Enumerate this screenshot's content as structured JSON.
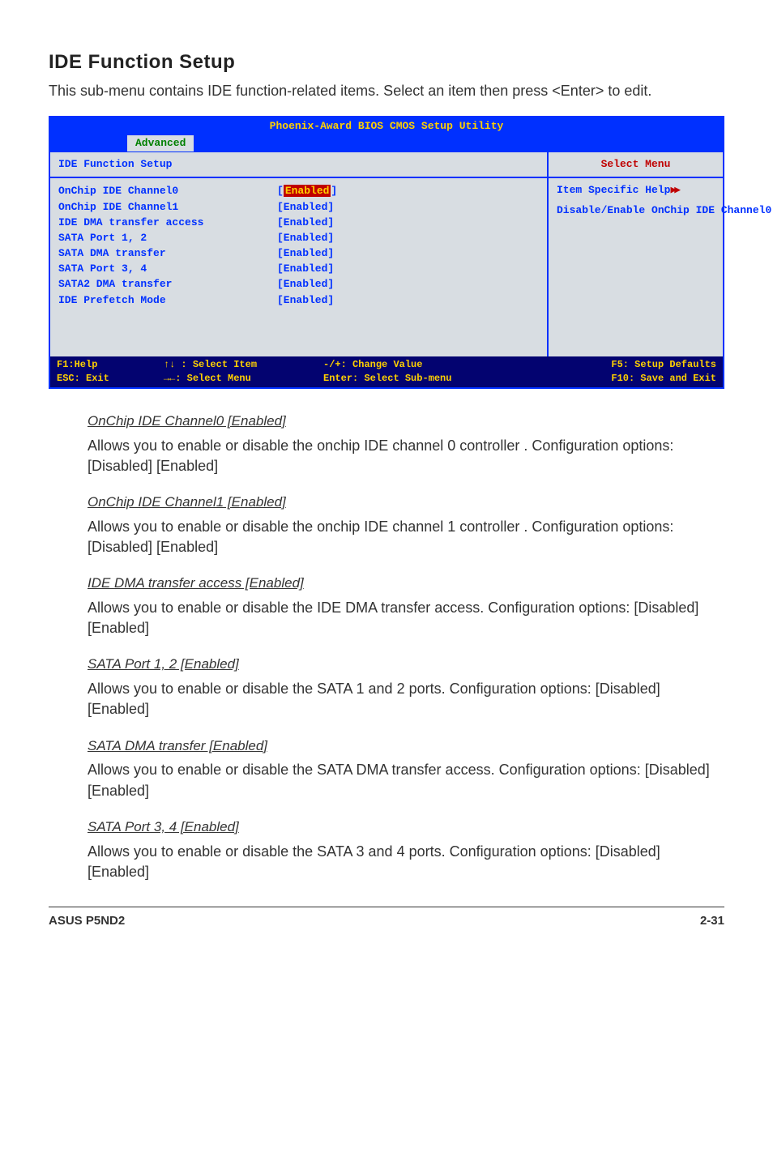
{
  "page": {
    "heading": "IDE Function Setup",
    "intro": "This sub-menu contains IDE function-related items. Select an item then press <Enter> to edit."
  },
  "bios": {
    "title": "Phoenix-Award BIOS CMOS Setup Utility",
    "tab": "Advanced",
    "section_header": "IDE Function Setup",
    "side_header": "Select Menu",
    "rows": [
      {
        "label": "OnChip IDE Channel0",
        "value": "Enabled",
        "selected": true
      },
      {
        "label": "OnChip IDE Channel1",
        "value": "[Enabled]"
      },
      {
        "label": "IDE DMA transfer access",
        "value": "[Enabled]"
      },
      {
        "label": "SATA Port 1, 2",
        "value": "[Enabled]"
      },
      {
        "label": "SATA DMA transfer",
        "value": "[Enabled]"
      },
      {
        "label": "SATA Port 3, 4",
        "value": "[Enabled]"
      },
      {
        "label": "SATA2 DMA transfer",
        "value": "[Enabled]"
      },
      {
        "label": "IDE Prefetch Mode",
        "value": "[Enabled]"
      }
    ],
    "side_help_label": "Item Specific Help",
    "side_help_text": "Disable/Enable OnChip IDE Channel0",
    "footer": {
      "c1a": "F1:Help",
      "c1b": "ESC: Exit",
      "c2a": "↑↓ : Select Item",
      "c2b": "→←: Select Menu",
      "c3a": "-/+: Change Value",
      "c3b": "Enter: Select Sub-menu",
      "c4a": "F5: Setup Defaults",
      "c4b": "F10: Save and Exit"
    }
  },
  "items": [
    {
      "head": "OnChip IDE Channel0 [Enabled]",
      "body": "Allows you to enable or disable the onchip IDE channel 0 controller . Configuration options: [Disabled] [Enabled]"
    },
    {
      "head": "OnChip IDE Channel1 [Enabled]",
      "body": "Allows you to enable or disable the onchip IDE channel 1 controller . Configuration options: [Disabled] [Enabled]"
    },
    {
      "head": "IDE DMA transfer access [Enabled]",
      "body": "Allows you to enable or disable the IDE DMA transfer access. Configuration options: [Disabled] [Enabled]"
    },
    {
      "head": "SATA Port 1, 2 [Enabled]",
      "body": "Allows you to enable or disable the SATA 1 and 2 ports. Configuration options: [Disabled] [Enabled]"
    },
    {
      "head": "SATA DMA transfer [Enabled]",
      "body": "Allows you to enable or disable the SATA DMA transfer access. Configuration options: [Disabled] [Enabled]"
    },
    {
      "head": "SATA Port 3, 4 [Enabled]",
      "body": "Allows you to enable or disable the SATA 3 and 4 ports. Configuration options: [Disabled] [Enabled]"
    }
  ],
  "footer": {
    "left": "ASUS P5ND2",
    "right": "2-31"
  }
}
